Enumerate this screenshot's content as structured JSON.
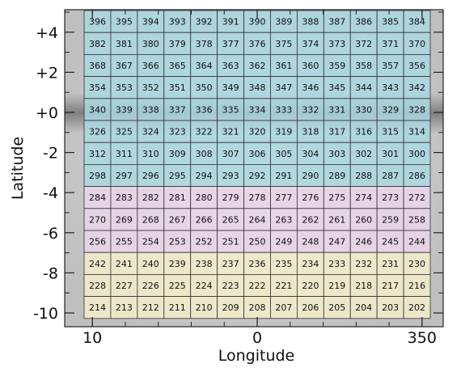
{
  "chart_data": {
    "type": "heatmap",
    "xlabel": "Longitude",
    "ylabel": "Latitude",
    "x_tick_labels": [
      "10",
      "0",
      "350"
    ],
    "y_tick_labels": [
      "+4",
      "+2",
      "+0",
      "-2",
      "-4",
      "-6",
      "-8",
      "-10"
    ],
    "y_ticks": [
      4,
      2,
      0,
      -2,
      -4,
      -6,
      -8,
      -10
    ],
    "ylim": [
      -10.5,
      5
    ],
    "longitude_range": [
      10.5,
      -10.5
    ],
    "columns": 13,
    "rows": 14,
    "row_latitude_top": 5,
    "row_height_deg": 1,
    "first_row_start": 396,
    "row_step": -14,
    "band_colors": {
      "blue": "#a9d8e2",
      "pink": "#edd6ec",
      "yellow": "#f6efcb"
    },
    "row_bands": [
      "blue",
      "blue",
      "blue",
      "blue",
      "blue",
      "blue",
      "blue",
      "blue",
      "pink",
      "pink",
      "pink",
      "yellow",
      "yellow",
      "yellow"
    ],
    "grid": true
  }
}
